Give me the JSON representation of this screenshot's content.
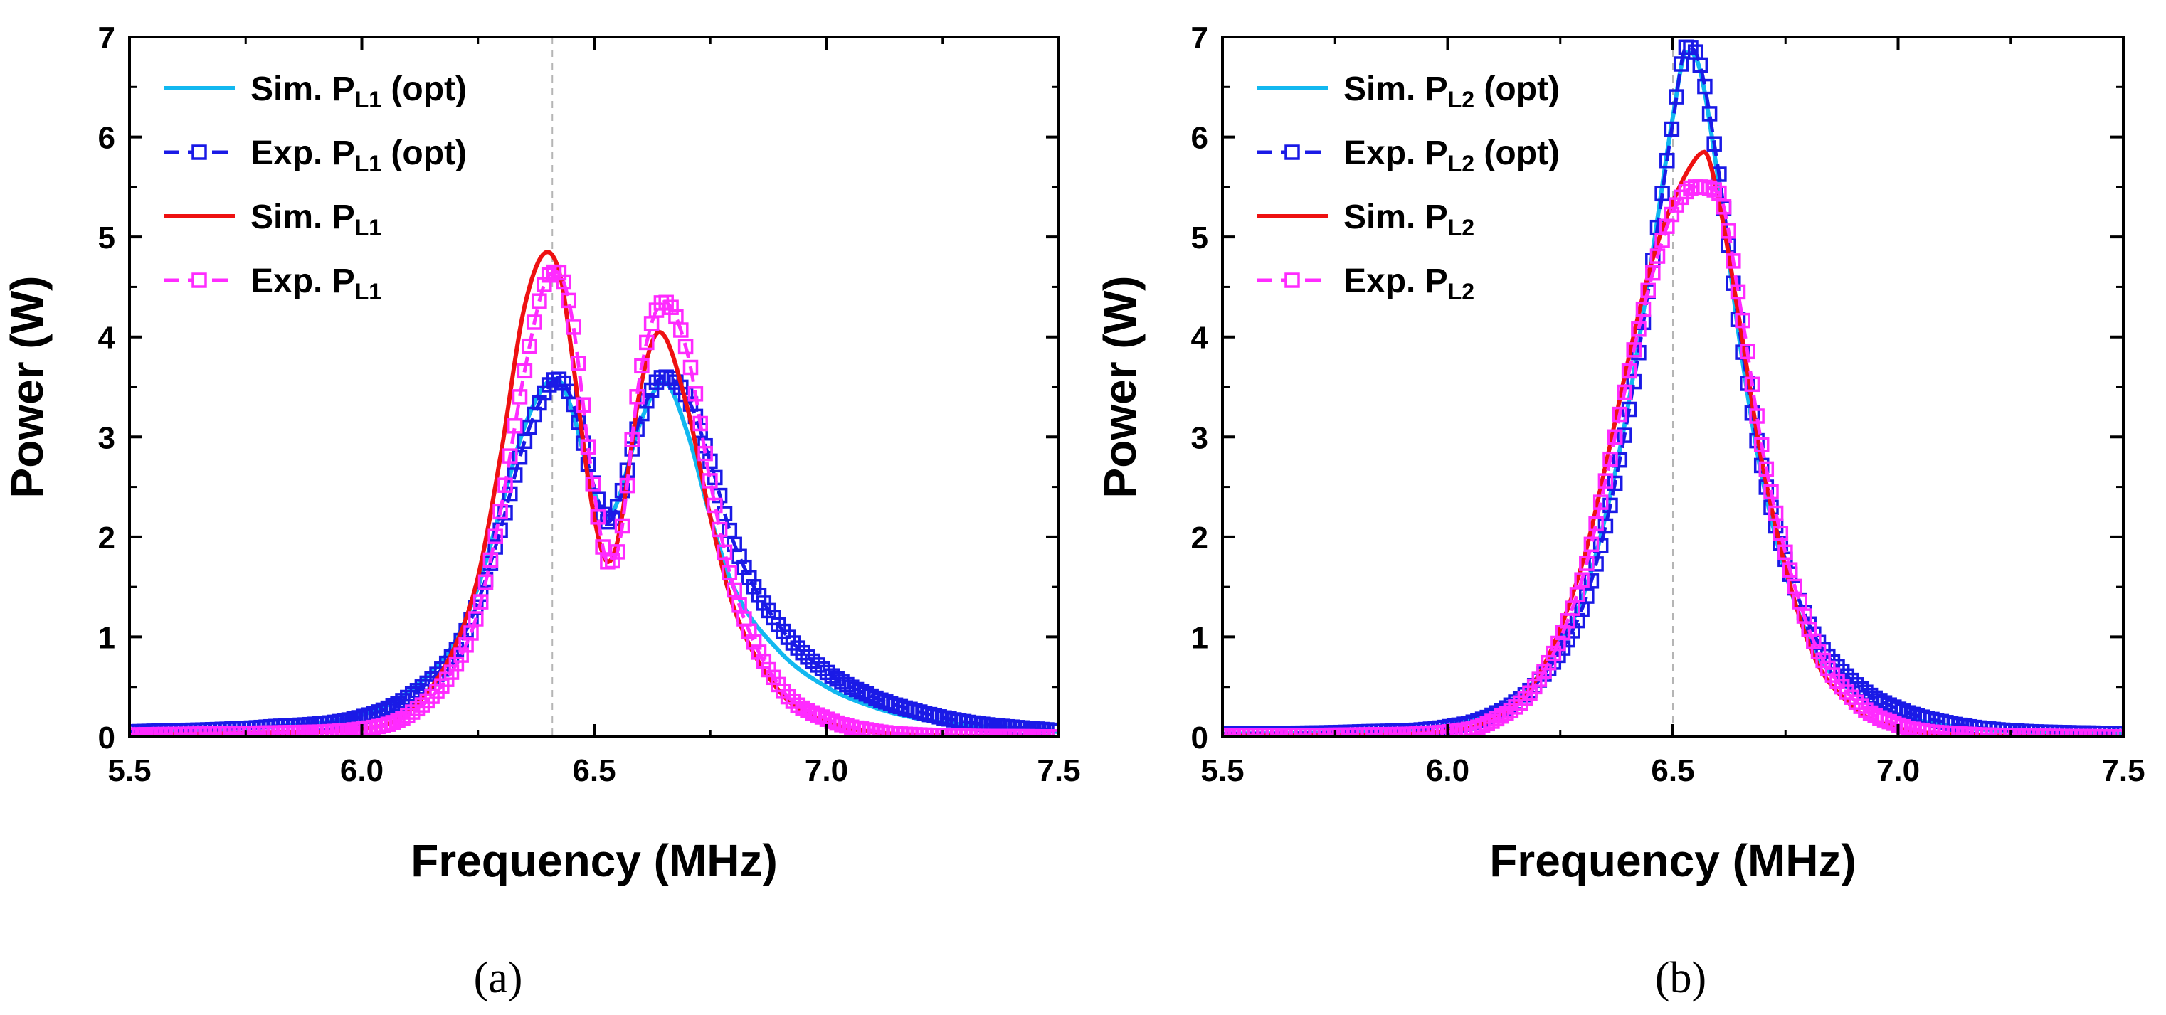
{
  "figure": {
    "panel_labels": [
      "(a)",
      "(b)"
    ]
  },
  "colors": {
    "sim_opt": "#12b8f0",
    "exp_opt": "#1a1ae6",
    "sim": "#ee1111",
    "exp": "#ff2bff",
    "grid_ref": "#b5b5b5",
    "axis": "#000000"
  },
  "chart_data": [
    {
      "type": "line",
      "panel": "(a)",
      "title": "",
      "xlabel": "Frequency (MHz)",
      "ylabel": "Power (W)",
      "xlim": [
        5.5,
        7.5
      ],
      "ylim": [
        0,
        7
      ],
      "xticks": [
        "5.5",
        "6.0",
        "6.5",
        "7.0",
        "7.5"
      ],
      "yticks": [
        "0",
        "1",
        "2",
        "3",
        "4",
        "5",
        "6",
        "7"
      ],
      "reference_line_x": 6.41,
      "legend_position": "top-left",
      "series": [
        {
          "name": "Sim. P_L1 (opt)",
          "label_main": "Sim. P",
          "label_sub": "L1",
          "label_tail": " (opt)",
          "color_key": "sim_opt",
          "style": "solid",
          "marker": "none",
          "x": [
            5.5,
            5.8,
            6.0,
            6.1,
            6.2,
            6.25,
            6.3,
            6.35,
            6.4,
            6.42,
            6.45,
            6.5,
            6.53,
            6.55,
            6.6,
            6.65,
            6.7,
            6.75,
            6.8,
            6.9,
            7.0,
            7.1,
            7.2,
            7.3,
            7.5
          ],
          "y": [
            0.05,
            0.1,
            0.22,
            0.45,
            0.95,
            1.5,
            2.3,
            3.1,
            3.55,
            3.58,
            3.3,
            2.45,
            2.2,
            2.35,
            3.15,
            3.55,
            3.05,
            2.2,
            1.5,
            0.85,
            0.5,
            0.3,
            0.18,
            0.12,
            0.05
          ]
        },
        {
          "name": "Exp. P_L1 (opt)",
          "label_main": "Exp. P",
          "label_sub": "L1",
          "label_tail": " (opt)",
          "color_key": "exp_opt",
          "style": "dashed",
          "marker": "square",
          "x": [
            5.5,
            5.8,
            6.0,
            6.1,
            6.2,
            6.25,
            6.3,
            6.35,
            6.4,
            6.42,
            6.45,
            6.5,
            6.53,
            6.55,
            6.6,
            6.65,
            6.7,
            6.75,
            6.8,
            6.9,
            7.0,
            7.1,
            7.2,
            7.3,
            7.5
          ],
          "y": [
            0.05,
            0.1,
            0.2,
            0.4,
            0.85,
            1.35,
            2.1,
            2.95,
            3.5,
            3.58,
            3.4,
            2.5,
            2.15,
            2.3,
            3.2,
            3.6,
            3.4,
            2.75,
            1.95,
            1.1,
            0.65,
            0.4,
            0.25,
            0.15,
            0.06
          ]
        },
        {
          "name": "Sim. P_L1",
          "label_main": "Sim. P",
          "label_sub": "L1",
          "label_tail": "",
          "color_key": "sim",
          "style": "solid",
          "marker": "none",
          "x": [
            5.5,
            5.8,
            6.0,
            6.1,
            6.2,
            6.25,
            6.3,
            6.35,
            6.4,
            6.43,
            6.45,
            6.5,
            6.53,
            6.55,
            6.6,
            6.64,
            6.7,
            6.75,
            6.8,
            6.9,
            7.0,
            7.1,
            7.2,
            7.5
          ],
          "y": [
            0.02,
            0.04,
            0.08,
            0.25,
            0.9,
            1.6,
            2.85,
            4.3,
            4.85,
            4.55,
            3.9,
            2.2,
            1.75,
            1.95,
            3.5,
            4.05,
            3.3,
            2.2,
            1.3,
            0.45,
            0.15,
            0.05,
            0.02,
            0.0
          ]
        },
        {
          "name": "Exp. P_L1",
          "label_main": "Exp. P",
          "label_sub": "L1",
          "label_tail": "",
          "color_key": "exp",
          "style": "dashed",
          "marker": "square",
          "x": [
            5.5,
            5.8,
            6.0,
            6.1,
            6.2,
            6.25,
            6.3,
            6.35,
            6.4,
            6.42,
            6.45,
            6.5,
            6.53,
            6.55,
            6.6,
            6.65,
            6.7,
            6.75,
            6.8,
            6.9,
            7.0,
            7.1,
            7.2,
            7.5
          ],
          "y": [
            0.02,
            0.04,
            0.08,
            0.22,
            0.7,
            1.25,
            2.3,
            3.65,
            4.6,
            4.65,
            4.25,
            2.45,
            1.75,
            1.85,
            3.65,
            4.35,
            3.85,
            2.55,
            1.5,
            0.5,
            0.18,
            0.06,
            0.02,
            0.0
          ]
        }
      ]
    },
    {
      "type": "line",
      "panel": "(b)",
      "title": "",
      "xlabel": "Frequency (MHz)",
      "ylabel": "Power (W)",
      "xlim": [
        5.5,
        7.5
      ],
      "ylim": [
        0,
        7
      ],
      "xticks": [
        "5.5",
        "6.0",
        "6.5",
        "7.0",
        "7.5"
      ],
      "yticks": [
        "0",
        "1",
        "2",
        "3",
        "4",
        "5",
        "6",
        "7"
      ],
      "reference_line_x": 6.5,
      "legend_position": "top-left",
      "series": [
        {
          "name": "Sim. P_L2 (opt)",
          "label_main": "Sim. P",
          "label_sub": "L2",
          "label_tail": " (opt)",
          "color_key": "sim_opt",
          "style": "solid",
          "marker": "none",
          "x": [
            5.5,
            5.8,
            6.0,
            6.1,
            6.2,
            6.3,
            6.35,
            6.4,
            6.45,
            6.5,
            6.53,
            6.55,
            6.6,
            6.65,
            6.7,
            6.8,
            6.9,
            7.0,
            7.1,
            7.2,
            7.5
          ],
          "y": [
            0.03,
            0.05,
            0.12,
            0.25,
            0.6,
            1.4,
            2.2,
            3.3,
            4.7,
            6.2,
            6.85,
            6.8,
            5.6,
            3.9,
            2.55,
            1.0,
            0.45,
            0.22,
            0.12,
            0.07,
            0.03
          ]
        },
        {
          "name": "Exp. P_L2 (opt)",
          "label_main": "Exp. P",
          "label_sub": "L2",
          "label_tail": " (opt)",
          "color_key": "exp_opt",
          "style": "dashed",
          "marker": "square",
          "x": [
            5.5,
            5.8,
            6.0,
            6.1,
            6.2,
            6.3,
            6.35,
            6.4,
            6.45,
            6.5,
            6.53,
            6.55,
            6.6,
            6.65,
            6.7,
            6.8,
            6.9,
            7.0,
            7.1,
            7.2,
            7.5
          ],
          "y": [
            0.03,
            0.05,
            0.1,
            0.22,
            0.55,
            1.3,
            2.1,
            3.2,
            4.6,
            6.15,
            6.9,
            6.85,
            5.7,
            4.0,
            2.65,
            1.15,
            0.55,
            0.28,
            0.15,
            0.08,
            0.03
          ]
        },
        {
          "name": "Sim. P_L2",
          "label_main": "Sim. P",
          "label_sub": "L2",
          "label_tail": "",
          "color_key": "sim",
          "style": "solid",
          "marker": "none",
          "x": [
            5.5,
            5.8,
            6.0,
            6.1,
            6.2,
            6.3,
            6.35,
            6.4,
            6.45,
            6.5,
            6.55,
            6.57,
            6.6,
            6.65,
            6.7,
            6.8,
            6.9,
            7.0,
            7.1,
            7.5
          ],
          "y": [
            0.01,
            0.02,
            0.06,
            0.18,
            0.6,
            1.75,
            2.7,
            3.75,
            4.7,
            5.35,
            5.78,
            5.85,
            5.4,
            4.1,
            2.7,
            0.95,
            0.3,
            0.09,
            0.03,
            0.0
          ]
        },
        {
          "name": "Exp. P_L2",
          "label_main": "Exp. P",
          "label_sub": "L2",
          "label_tail": "",
          "color_key": "exp",
          "style": "dashed",
          "marker": "square",
          "x": [
            5.5,
            5.8,
            6.0,
            6.1,
            6.2,
            6.3,
            6.35,
            6.4,
            6.45,
            6.5,
            6.55,
            6.6,
            6.65,
            6.7,
            6.8,
            6.9,
            7.0,
            7.1,
            7.5
          ],
          "y": [
            0.01,
            0.02,
            0.05,
            0.16,
            0.55,
            1.6,
            2.55,
            3.6,
            4.55,
            5.25,
            5.5,
            5.45,
            4.3,
            2.85,
            1.1,
            0.38,
            0.12,
            0.04,
            0.0
          ]
        }
      ]
    }
  ]
}
